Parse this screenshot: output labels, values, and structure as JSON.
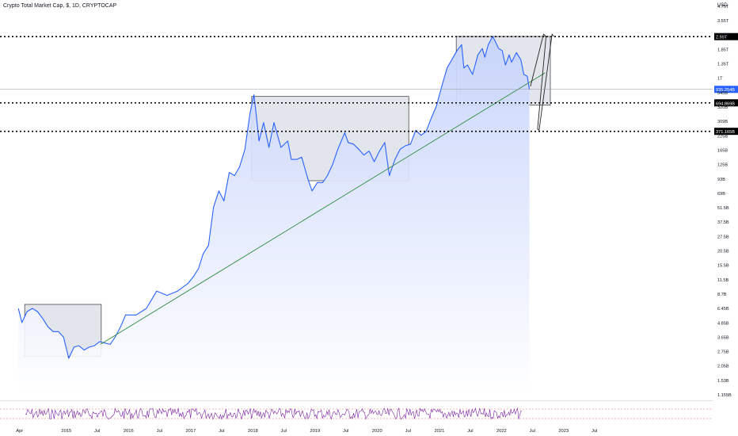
{
  "header": {
    "title": "Crypto Total Market Cap, $, 1D, CRYPTOCAP",
    "currency": "USD"
  },
  "colors": {
    "series": "#2962ff",
    "fill_top": "#c6d3fb",
    "fill_bottom": "#ffffff",
    "trendline": "#2e8b3e",
    "boxes": "#d8dce4",
    "level": "#000000",
    "last_price_badge": "#2962ff",
    "oscillator": "#7b1fa2"
  },
  "chart_data": {
    "type": "line",
    "title": "Crypto Total Market Cap, $, 1D, CRYPTOCAP",
    "scale": "log",
    "x_ticks": [
      "Apr",
      "2015",
      "Jul",
      "2016",
      "Jul",
      "2017",
      "Jul",
      "2018",
      "Jul",
      "2019",
      "Jul",
      "2020",
      "Jul",
      "2021",
      "Jul",
      "2022",
      "Jul",
      "2023",
      "Jul"
    ],
    "y_ticks": [
      "4.75T",
      "3.55T",
      "2.55T",
      "1.85T",
      "1.35T",
      "1T",
      "545B",
      "320B",
      "309B",
      "225B",
      "165B",
      "125B",
      "93B",
      "69B",
      "51.5B",
      "37.5B",
      "27.5B",
      "20.5B",
      "15.5B",
      "11.5B",
      "8.7B",
      "6.45B",
      "4.85B",
      "3.65B",
      "2.75B",
      "2.05B",
      "1.53B",
      "1.155B"
    ],
    "y_range": [
      "1.155B",
      "4.75T"
    ],
    "price_badges": [
      {
        "label": "2.99T",
        "kind": "level"
      },
      {
        "label": "935.254B",
        "kind": "last"
      },
      {
        "label": "694.869B",
        "kind": "level"
      },
      {
        "label": "371.165B",
        "kind": "level"
      }
    ],
    "series": [
      {
        "values_in_billions": [
          {
            "d": "2014-03-25",
            "v": 7.5
          },
          {
            "d": "2014-04-15",
            "v": 5.5
          },
          {
            "d": "2014-05-15",
            "v": 7.0
          },
          {
            "d": "2014-06-15",
            "v": 7.5
          },
          {
            "d": "2014-07-15",
            "v": 7.0
          },
          {
            "d": "2014-08-15",
            "v": 6.0
          },
          {
            "d": "2014-09-15",
            "v": 5.0
          },
          {
            "d": "2014-10-15",
            "v": 4.5
          },
          {
            "d": "2014-11-15",
            "v": 4.5
          },
          {
            "d": "2014-12-15",
            "v": 4.0
          },
          {
            "d": "2015-01-15",
            "v": 2.5
          },
          {
            "d": "2015-02-15",
            "v": 3.2
          },
          {
            "d": "2015-03-15",
            "v": 3.3
          },
          {
            "d": "2015-04-15",
            "v": 3.0
          },
          {
            "d": "2015-05-15",
            "v": 3.2
          },
          {
            "d": "2015-06-15",
            "v": 3.3
          },
          {
            "d": "2015-07-15",
            "v": 3.6
          },
          {
            "d": "2015-08-15",
            "v": 3.5
          },
          {
            "d": "2015-09-15",
            "v": 3.4
          },
          {
            "d": "2015-10-15",
            "v": 4.0
          },
          {
            "d": "2015-11-15",
            "v": 5.0
          },
          {
            "d": "2015-12-15",
            "v": 6.5
          },
          {
            "d": "2016-02-15",
            "v": 6.5
          },
          {
            "d": "2016-04-15",
            "v": 7.5
          },
          {
            "d": "2016-06-15",
            "v": 11.0
          },
          {
            "d": "2016-08-15",
            "v": 10.0
          },
          {
            "d": "2016-10-15",
            "v": 11.0
          },
          {
            "d": "2016-12-15",
            "v": 13.0
          },
          {
            "d": "2017-01-15",
            "v": 15.0
          },
          {
            "d": "2017-02-15",
            "v": 18.0
          },
          {
            "d": "2017-03-15",
            "v": 25.0
          },
          {
            "d": "2017-04-15",
            "v": 30.0
          },
          {
            "d": "2017-05-15",
            "v": 70.0
          },
          {
            "d": "2017-06-15",
            "v": 100.0
          },
          {
            "d": "2017-07-15",
            "v": 80.0
          },
          {
            "d": "2017-08-15",
            "v": 150.0
          },
          {
            "d": "2017-09-15",
            "v": 140.0
          },
          {
            "d": "2017-10-15",
            "v": 170.0
          },
          {
            "d": "2017-11-15",
            "v": 250.0
          },
          {
            "d": "2017-12-15",
            "v": 550.0
          },
          {
            "d": "2018-01-07",
            "v": 830.0
          },
          {
            "d": "2018-01-20",
            "v": 550.0
          },
          {
            "d": "2018-02-06",
            "v": 300.0
          },
          {
            "d": "2018-03-05",
            "v": 450.0
          },
          {
            "d": "2018-04-05",
            "v": 260.0
          },
          {
            "d": "2018-05-05",
            "v": 450.0
          },
          {
            "d": "2018-06-15",
            "v": 260.0
          },
          {
            "d": "2018-07-25",
            "v": 300.0
          },
          {
            "d": "2018-08-15",
            "v": 200.0
          },
          {
            "d": "2018-09-15",
            "v": 200.0
          },
          {
            "d": "2018-10-15",
            "v": 210.0
          },
          {
            "d": "2018-11-20",
            "v": 130.0
          },
          {
            "d": "2018-12-15",
            "v": 100.0
          },
          {
            "d": "2019-01-15",
            "v": 120.0
          },
          {
            "d": "2019-02-15",
            "v": 120.0
          },
          {
            "d": "2019-03-15",
            "v": 140.0
          },
          {
            "d": "2019-04-15",
            "v": 180.0
          },
          {
            "d": "2019-05-15",
            "v": 250.0
          },
          {
            "d": "2019-06-25",
            "v": 360.0
          },
          {
            "d": "2019-07-15",
            "v": 290.0
          },
          {
            "d": "2019-08-15",
            "v": 280.0
          },
          {
            "d": "2019-09-15",
            "v": 250.0
          },
          {
            "d": "2019-10-15",
            "v": 220.0
          },
          {
            "d": "2019-11-15",
            "v": 240.0
          },
          {
            "d": "2019-12-15",
            "v": 190.0
          },
          {
            "d": "2020-01-15",
            "v": 240.0
          },
          {
            "d": "2020-02-15",
            "v": 290.0
          },
          {
            "d": "2020-03-13",
            "v": 140.0
          },
          {
            "d": "2020-04-15",
            "v": 200.0
          },
          {
            "d": "2020-05-15",
            "v": 250.0
          },
          {
            "d": "2020-06-15",
            "v": 270.0
          },
          {
            "d": "2020-07-15",
            "v": 280.0
          },
          {
            "d": "2020-08-15",
            "v": 380.0
          },
          {
            "d": "2020-09-15",
            "v": 340.0
          },
          {
            "d": "2020-10-15",
            "v": 370.0
          },
          {
            "d": "2020-11-15",
            "v": 500.0
          },
          {
            "d": "2020-12-15",
            "v": 650.0
          },
          {
            "d": "2021-01-15",
            "v": 1000.0
          },
          {
            "d": "2021-02-15",
            "v": 1500.0
          },
          {
            "d": "2021-03-15",
            "v": 1800.0
          },
          {
            "d": "2021-04-15",
            "v": 2200.0
          },
          {
            "d": "2021-05-12",
            "v": 2500.0
          },
          {
            "d": "2021-05-25",
            "v": 1500.0
          },
          {
            "d": "2021-06-15",
            "v": 1600.0
          },
          {
            "d": "2021-07-15",
            "v": 1300.0
          },
          {
            "d": "2021-08-15",
            "v": 2000.0
          },
          {
            "d": "2021-09-10",
            "v": 2300.0
          },
          {
            "d": "2021-09-25",
            "v": 1900.0
          },
          {
            "d": "2021-10-15",
            "v": 2500.0
          },
          {
            "d": "2021-11-10",
            "v": 3000.0
          },
          {
            "d": "2021-11-25",
            "v": 2700.0
          },
          {
            "d": "2021-12-15",
            "v": 2300.0
          },
          {
            "d": "2022-01-05",
            "v": 2200.0
          },
          {
            "d": "2022-01-24",
            "v": 1600.0
          },
          {
            "d": "2022-02-15",
            "v": 2000.0
          },
          {
            "d": "2022-03-01",
            "v": 1700.0
          },
          {
            "d": "2022-03-30",
            "v": 2100.0
          },
          {
            "d": "2022-04-25",
            "v": 1800.0
          },
          {
            "d": "2022-05-12",
            "v": 1300.0
          },
          {
            "d": "2022-06-01",
            "v": 1250.0
          },
          {
            "d": "2022-06-14",
            "v": 935.25
          }
        ]
      }
    ]
  }
}
